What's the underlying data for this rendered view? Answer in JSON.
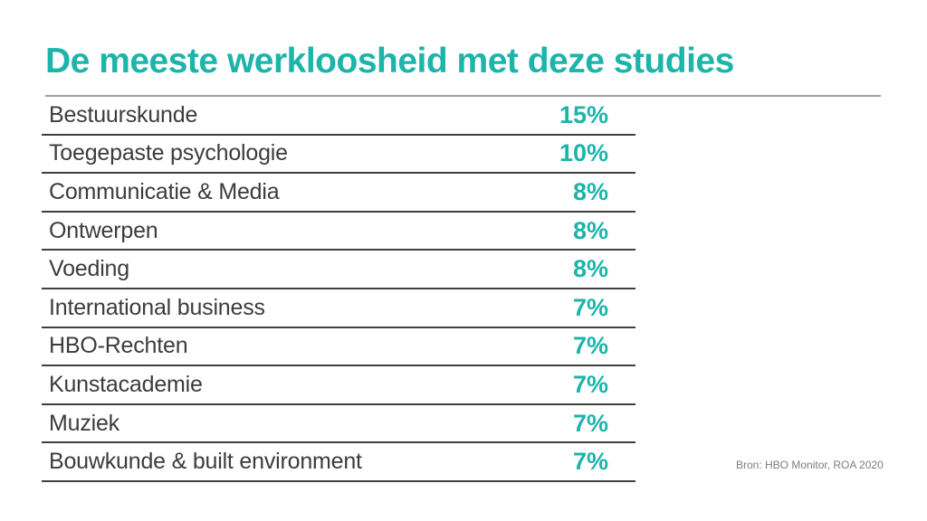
{
  "header": {
    "title": "De meeste werkloosheid met deze studies"
  },
  "footer": {
    "source": "Bron: HBO Monitor, ROA 2020"
  },
  "colors": {
    "background": "#ffffff",
    "accent": "#1db4aa",
    "label_text": "#3c3c3c",
    "title_rule": "#a0a0a0",
    "row_rule": "#404040",
    "source_text": "#7d7d7d"
  },
  "chart_data": {
    "type": "table",
    "title": "De meeste werkloosheid met deze studies",
    "unit": "%",
    "values": [
      15,
      10,
      8,
      8,
      8,
      7,
      7,
      7,
      7,
      7
    ],
    "rows": [
      {
        "label": "Bestuurskunde",
        "value": 15,
        "display": "15%"
      },
      {
        "label": "Toegepaste psychologie",
        "value": 10,
        "display": "10%"
      },
      {
        "label": "Communicatie & Media",
        "value": 8,
        "display": "8%"
      },
      {
        "label": "Ontwerpen",
        "value": 8,
        "display": "8%"
      },
      {
        "label": "Voeding",
        "value": 8,
        "display": "8%"
      },
      {
        "label": "International business",
        "value": 7,
        "display": "7%"
      },
      {
        "label": "HBO-Rechten",
        "value": 7,
        "display": "7%"
      },
      {
        "label": "Kunstacademie",
        "value": 7,
        "display": "7%"
      },
      {
        "label": "Muziek",
        "value": 7,
        "display": "7%"
      },
      {
        "label": "Bouwkunde & built environment",
        "value": 7,
        "display": "7%"
      }
    ],
    "source": "Bron: HBO Monitor, ROA 2020",
    "layout": {
      "grid": false,
      "legend": "none",
      "value_alignment": "right"
    }
  }
}
